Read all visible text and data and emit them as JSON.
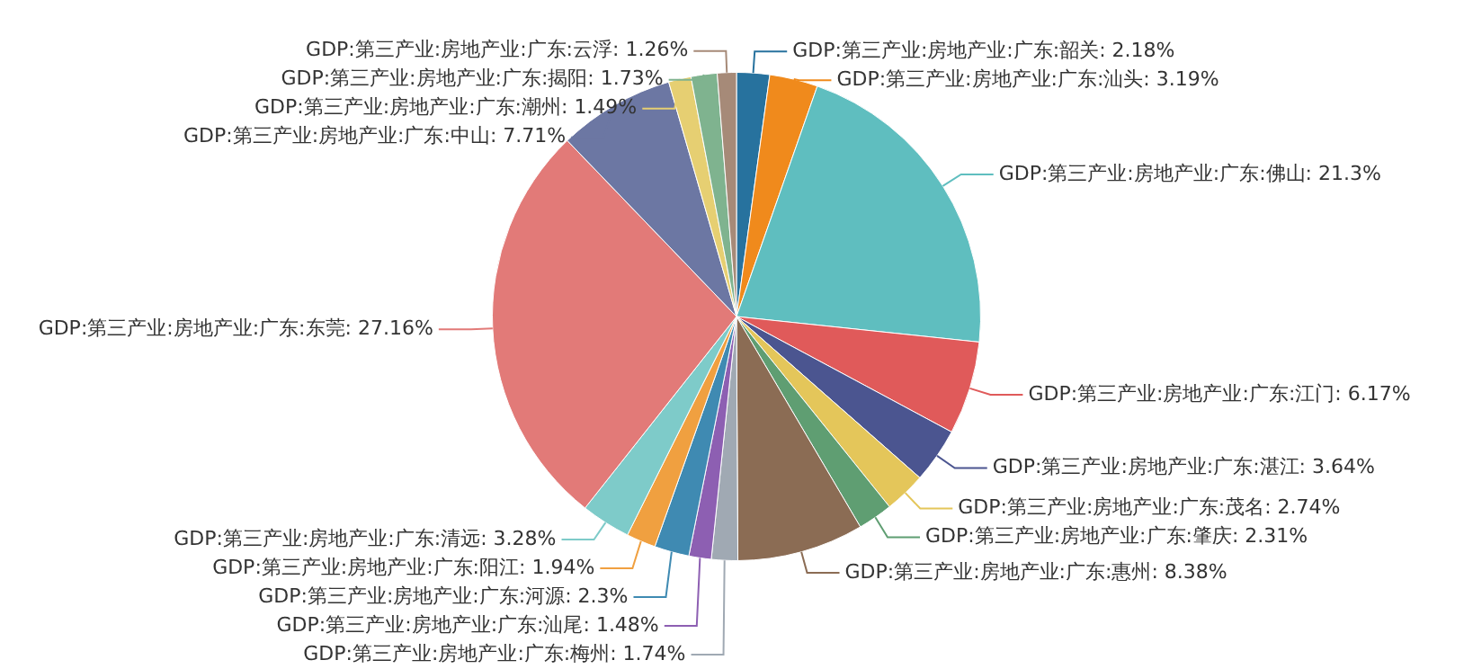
{
  "chart_data": {
    "type": "pie",
    "categories": [
      "GDP:第三产业:房地产业:广东:韶关",
      "GDP:第三产业:房地产业:广东:汕头",
      "GDP:第三产业:房地产业:广东:佛山",
      "GDP:第三产业:房地产业:广东:江门",
      "GDP:第三产业:房地产业:广东:湛江",
      "GDP:第三产业:房地产业:广东:茂名",
      "GDP:第三产业:房地产业:广东:肇庆",
      "GDP:第三产业:房地产业:广东:惠州",
      "GDP:第三产业:房地产业:广东:梅州",
      "GDP:第三产业:房地产业:广东:汕尾",
      "GDP:第三产业:房地产业:广东:河源",
      "GDP:第三产业:房地产业:广东:阳江",
      "GDP:第三产业:房地产业:广东:清远",
      "GDP:第三产业:房地产业:广东:东莞",
      "GDP:第三产业:房地产业:广东:中山",
      "GDP:第三产业:房地产业:广东:潮州",
      "GDP:第三产业:房地产业:广东:揭阳",
      "GDP:第三产业:房地产业:广东:云浮"
    ],
    "values": [
      2.18,
      3.19,
      21.3,
      6.17,
      3.64,
      2.74,
      2.31,
      8.38,
      1.74,
      1.48,
      2.3,
      1.94,
      3.28,
      27.16,
      7.71,
      1.49,
      1.73,
      1.26
    ],
    "value_labels": [
      "2.18%",
      "3.19%",
      "21.3%",
      "6.17%",
      "3.64%",
      "2.74%",
      "2.31%",
      "8.38%",
      "1.74%",
      "1.48%",
      "2.3%",
      "1.94%",
      "3.28%",
      "27.16%",
      "7.71%",
      "1.49%",
      "1.73%",
      "1.26%"
    ],
    "colors": [
      "#27729e",
      "#f08a1c",
      "#5fbebf",
      "#e05a5a",
      "#4b5590",
      "#e4c65a",
      "#5f9e72",
      "#8b6c54",
      "#a0a9b3",
      "#8d5fb2",
      "#3f8ab2",
      "#f0a040",
      "#7ecbc9",
      "#e27a78",
      "#6c77a3",
      "#e6cf72",
      "#7fb38f",
      "#a68a78"
    ]
  }
}
